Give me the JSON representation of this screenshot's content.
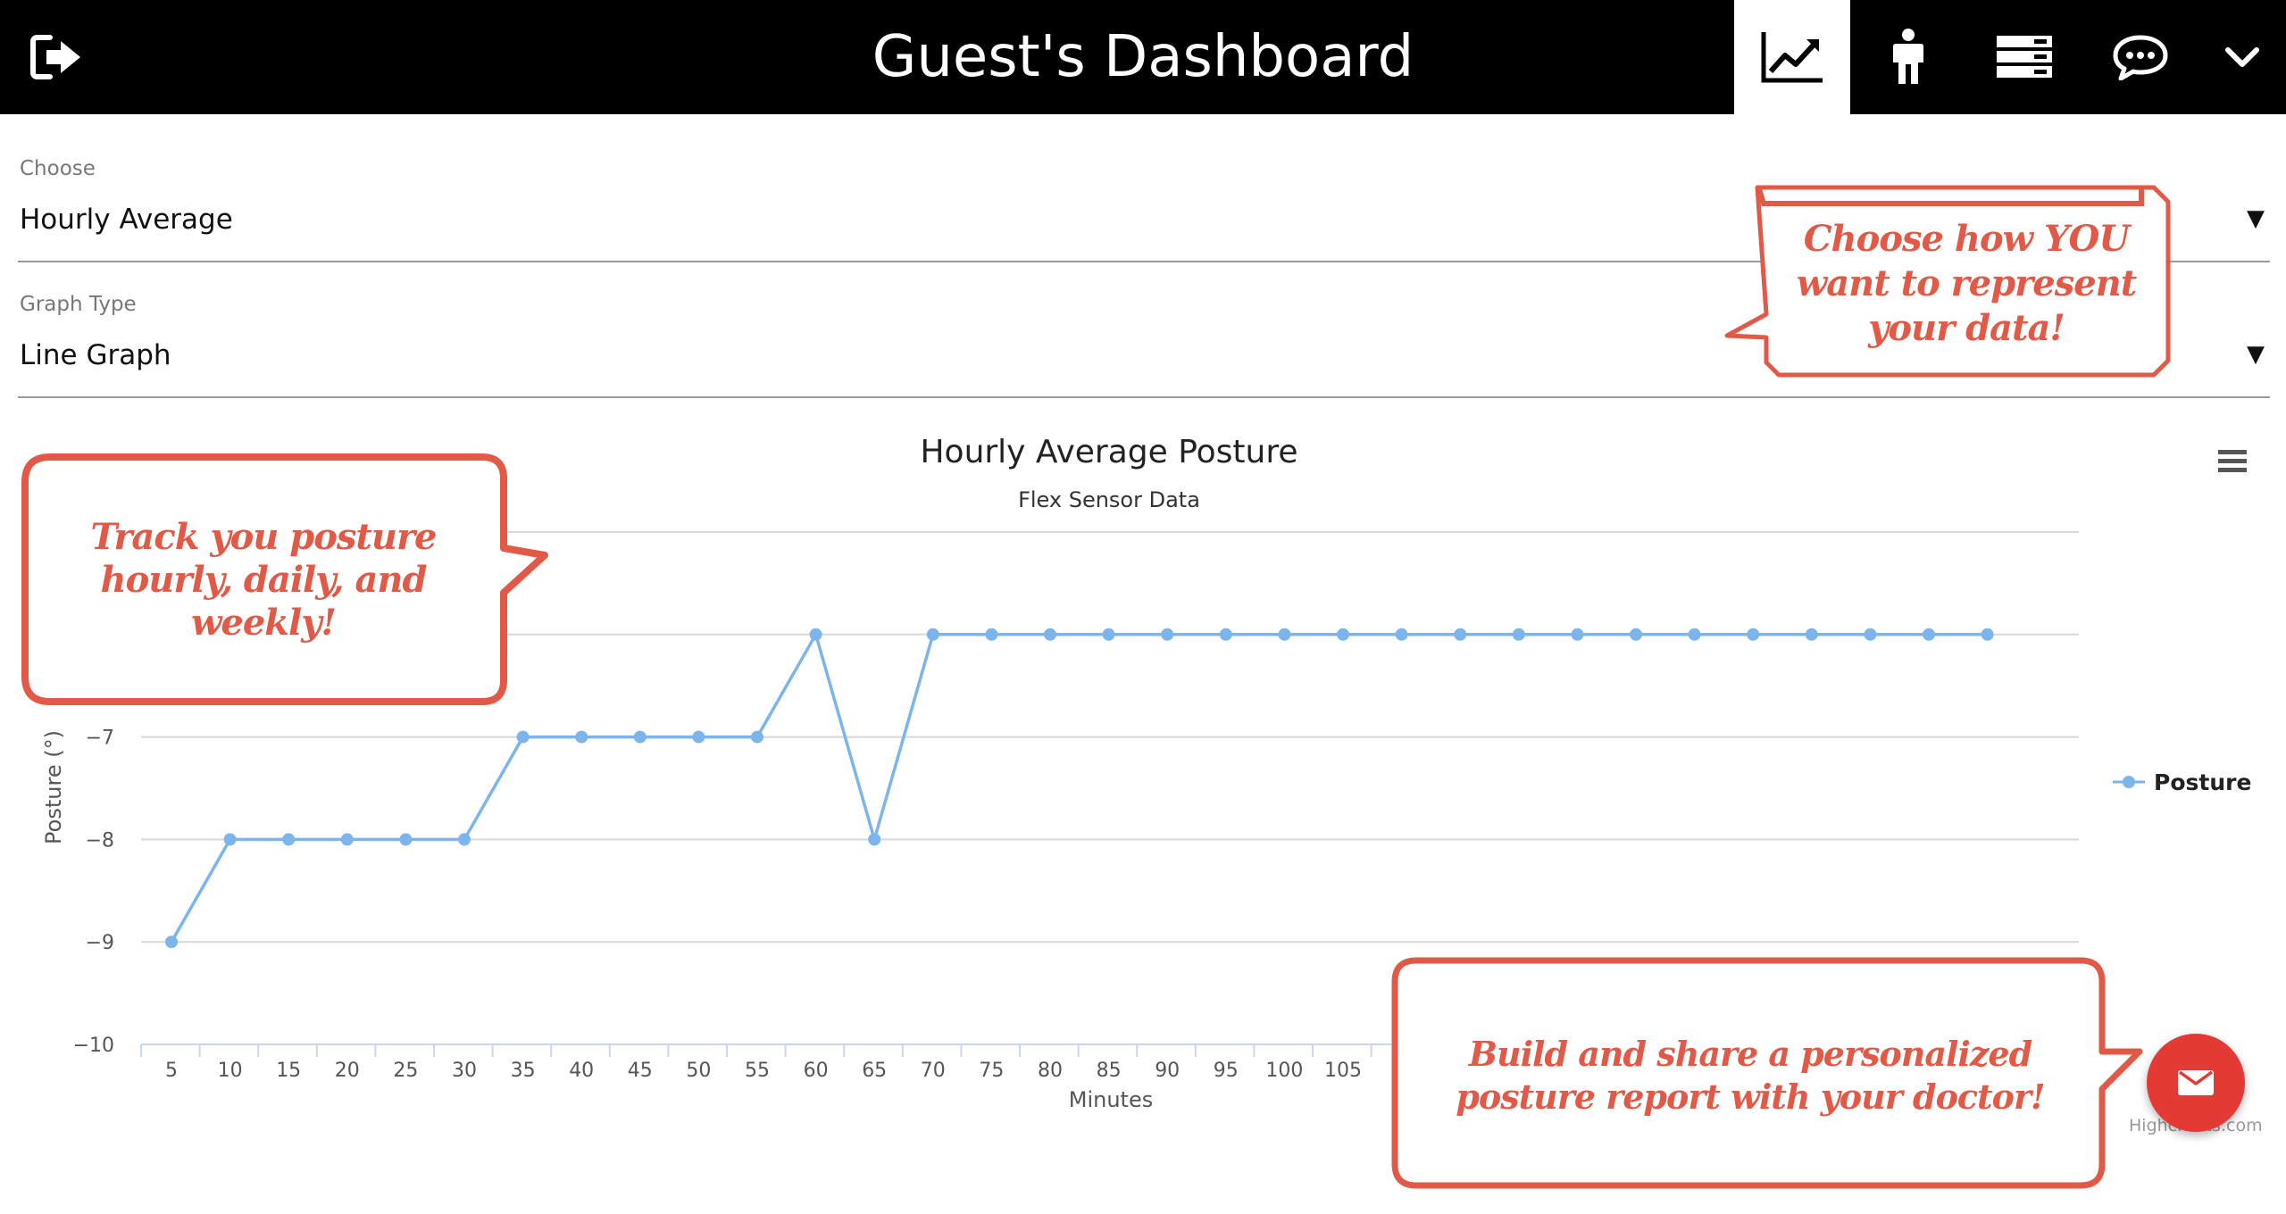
{
  "header": {
    "title": "Guest's Dashboard",
    "logout_icon": "logout-icon",
    "nav": [
      {
        "name": "charts",
        "icon": "line-chart-icon",
        "active": true
      },
      {
        "name": "posture",
        "icon": "person-icon",
        "active": false
      },
      {
        "name": "data",
        "icon": "server-icon",
        "active": false
      },
      {
        "name": "chat",
        "icon": "chat-bubble-icon",
        "active": false
      },
      {
        "name": "more",
        "icon": "chevron-down-icon",
        "active": false
      }
    ]
  },
  "controls": {
    "choose": {
      "label": "Choose",
      "value": "Hourly Average"
    },
    "graph_type": {
      "label": "Graph Type",
      "value": "Line Graph"
    }
  },
  "chart_data": {
    "type": "line",
    "title": "Hourly Average Posture",
    "subtitle": "Flex Sensor Data",
    "xlabel": "Minutes",
    "ylabel": "Posture (°)",
    "x": [
      5,
      10,
      15,
      20,
      25,
      30,
      35,
      40,
      45,
      50,
      55,
      60,
      65,
      70,
      75,
      80,
      85,
      90,
      95,
      100,
      105,
      110,
      115,
      120,
      125,
      130,
      135,
      140,
      145,
      150,
      155,
      160
    ],
    "x_visible_ticks": [
      "5",
      "10",
      "15",
      "20",
      "25",
      "30",
      "35",
      "40",
      "45",
      "50",
      "55",
      "60",
      "65",
      "70",
      "75",
      "80",
      "85",
      "90",
      "95",
      "100",
      "105",
      "1"
    ],
    "y_ticks": [
      {
        "value": -7,
        "label": "−7"
      },
      {
        "value": -8,
        "label": "−8"
      },
      {
        "value": -9,
        "label": "−9"
      },
      {
        "value": -10,
        "label": "−10"
      }
    ],
    "ylim": [
      -10,
      -5
    ],
    "series": [
      {
        "name": "Posture",
        "color": "#7cb5ec",
        "values": [
          -9,
          -8,
          -8,
          -8,
          -8,
          -8,
          -7,
          -7,
          -7,
          -7,
          -7,
          -6,
          -8,
          -6,
          -6,
          -6,
          -6,
          -6,
          -6,
          -6,
          -6,
          -6,
          -6,
          -6,
          -6,
          -6,
          -6,
          -6,
          -6,
          -6,
          -6,
          -6
        ]
      }
    ],
    "legend": "right"
  },
  "credits": "Highcharts.com",
  "fab_icon": "mail-icon",
  "callouts": {
    "representation": "Choose how YOU want to represent your data!",
    "tracking": "Track you posture hourly, daily, and weekly!",
    "report": "Build and share a personalized posture report with your doctor!"
  },
  "colors": {
    "accent": "#e05a47",
    "series": "#7cb5ec",
    "fab": "#e53935"
  }
}
